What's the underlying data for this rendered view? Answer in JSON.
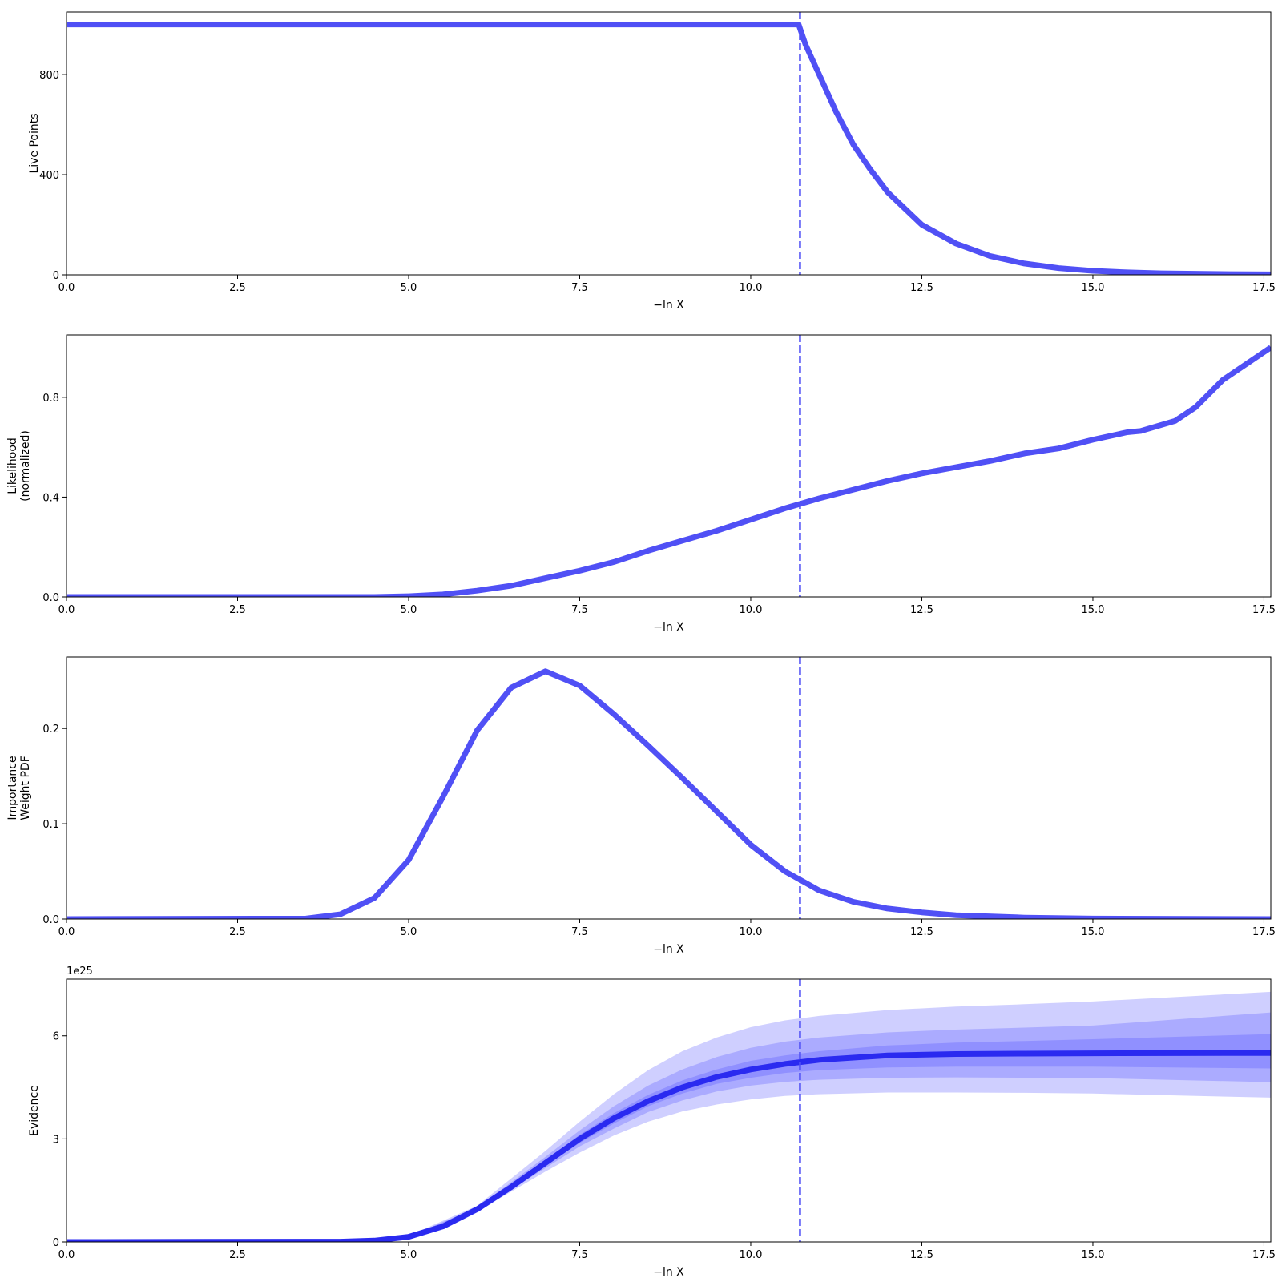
{
  "chart_data": [
    {
      "type": "line",
      "xlabel": "−ln X",
      "ylabel": [
        "Live Points"
      ],
      "xlim": [
        0,
        17.6
      ],
      "ylim": [
        0,
        1050
      ],
      "xticks": [
        0,
        2.5,
        5,
        7.5,
        10,
        12.5,
        15,
        17.5
      ],
      "xtick_labels": [
        "0.0",
        "2.5",
        "5.0",
        "7.5",
        "10.0",
        "12.5",
        "15.0",
        "17.5"
      ],
      "yticks": [
        0,
        400,
        800
      ],
      "ytick_labels": [
        "0",
        "400",
        "800"
      ],
      "vline_x": 10.72,
      "series": [
        {
          "x": [
            0,
            10.7,
            10.8,
            11.0,
            11.25,
            11.5,
            11.75,
            12.0,
            12.5,
            13.0,
            13.5,
            14.0,
            14.5,
            15.0,
            15.5,
            16.0,
            17.0,
            17.6
          ],
          "y": [
            1000,
            1000,
            920,
            800,
            650,
            520,
            420,
            330,
            200,
            125,
            75,
            45,
            27,
            16,
            10,
            6,
            3,
            2
          ]
        }
      ],
      "bands": []
    },
    {
      "type": "line",
      "xlabel": "−ln X",
      "ylabel": [
        "Likelihood",
        "(normalized)"
      ],
      "xlim": [
        0,
        17.6
      ],
      "ylim": [
        0,
        1.05
      ],
      "xticks": [
        0,
        2.5,
        5,
        7.5,
        10,
        12.5,
        15,
        17.5
      ],
      "xtick_labels": [
        "0.0",
        "2.5",
        "5.0",
        "7.5",
        "10.0",
        "12.5",
        "15.0",
        "17.5"
      ],
      "yticks": [
        0,
        0.4,
        0.8
      ],
      "ytick_labels": [
        "0.0",
        "0.4",
        "0.8"
      ],
      "vline_x": 10.72,
      "series": [
        {
          "x": [
            0,
            4.5,
            5.0,
            5.5,
            6.0,
            6.5,
            7.0,
            7.5,
            8.0,
            8.5,
            9.0,
            9.5,
            10.0,
            10.5,
            11.0,
            11.5,
            12.0,
            12.5,
            13.0,
            13.5,
            14.0,
            14.5,
            15.0,
            15.5,
            15.7,
            16.2,
            16.5,
            16.9,
            17.6
          ],
          "y": [
            0,
            0,
            0.003,
            0.01,
            0.025,
            0.045,
            0.075,
            0.105,
            0.14,
            0.185,
            0.225,
            0.265,
            0.31,
            0.355,
            0.395,
            0.43,
            0.465,
            0.495,
            0.52,
            0.545,
            0.575,
            0.595,
            0.63,
            0.66,
            0.665,
            0.705,
            0.76,
            0.87,
            1.0
          ]
        }
      ],
      "bands": []
    },
    {
      "type": "line",
      "xlabel": "−ln X",
      "ylabel": [
        "Importance",
        "Weight PDF"
      ],
      "xlim": [
        0,
        17.6
      ],
      "ylim": [
        0,
        0.275
      ],
      "xticks": [
        0,
        2.5,
        5,
        7.5,
        10,
        12.5,
        15,
        17.5
      ],
      "xtick_labels": [
        "0.0",
        "2.5",
        "5.0",
        "7.5",
        "10.0",
        "12.5",
        "15.0",
        "17.5"
      ],
      "yticks": [
        0,
        0.1,
        0.2
      ],
      "ytick_labels": [
        "0.0",
        "0.1",
        "0.2"
      ],
      "vline_x": 10.72,
      "series": [
        {
          "x": [
            0,
            3.5,
            4.0,
            4.5,
            5.0,
            5.5,
            6.0,
            6.5,
            7.0,
            7.5,
            8.0,
            8.5,
            9.0,
            9.5,
            10.0,
            10.5,
            11.0,
            11.5,
            12.0,
            12.5,
            13.0,
            14.0,
            15.0,
            17.6
          ],
          "y": [
            0,
            0.0005,
            0.005,
            0.022,
            0.062,
            0.128,
            0.198,
            0.243,
            0.26,
            0.245,
            0.215,
            0.182,
            0.148,
            0.113,
            0.078,
            0.05,
            0.03,
            0.018,
            0.011,
            0.007,
            0.004,
            0.0015,
            0.0005,
            0
          ]
        }
      ],
      "bands": []
    },
    {
      "type": "line",
      "xlabel": "−ln X",
      "ylabel": [
        "Evidence"
      ],
      "offset_label": "1e25",
      "xlim": [
        0,
        17.6
      ],
      "ylim": [
        0,
        7.65
      ],
      "xticks": [
        0,
        2.5,
        5,
        7.5,
        10,
        12.5,
        15,
        17.5
      ],
      "xtick_labels": [
        "0.0",
        "2.5",
        "5.0",
        "7.5",
        "10.0",
        "12.5",
        "15.0",
        "17.5"
      ],
      "yticks": [
        0,
        3,
        6
      ],
      "ytick_labels": [
        "0",
        "3",
        "6"
      ],
      "vline_x": 10.72,
      "series": [
        {
          "x": [
            0,
            4.0,
            4.5,
            5.0,
            5.5,
            6.0,
            6.5,
            7.0,
            7.5,
            8.0,
            8.5,
            9.0,
            9.5,
            10.0,
            10.5,
            11.0,
            12.0,
            13.0,
            14.0,
            15.0,
            17.6
          ],
          "y": [
            0,
            0.01,
            0.04,
            0.15,
            0.45,
            0.95,
            1.6,
            2.3,
            3.0,
            3.6,
            4.1,
            4.5,
            4.8,
            5.02,
            5.18,
            5.3,
            5.43,
            5.47,
            5.48,
            5.49,
            5.5
          ]
        }
      ],
      "bands": [
        {
          "x": [
            0,
            4.0,
            5.0,
            6.0,
            7.0,
            7.5,
            8.0,
            8.5,
            9.0,
            9.5,
            10.0,
            10.5,
            11.0,
            12.0,
            13.0,
            14.0,
            15.0,
            17.6
          ],
          "lower": [
            0,
            0.01,
            0.13,
            0.88,
            2.05,
            2.6,
            3.1,
            3.5,
            3.8,
            4.0,
            4.15,
            4.25,
            4.3,
            4.35,
            4.35,
            4.34,
            4.32,
            4.2
          ],
          "upper": [
            0,
            0.01,
            0.18,
            1.05,
            2.65,
            3.5,
            4.3,
            5.0,
            5.55,
            5.95,
            6.25,
            6.45,
            6.58,
            6.75,
            6.85,
            6.92,
            7.0,
            7.28
          ]
        },
        {
          "x": [
            0,
            4.0,
            5.0,
            6.0,
            7.0,
            7.5,
            8.0,
            8.5,
            9.0,
            9.5,
            10.0,
            10.5,
            11.0,
            12.0,
            13.0,
            14.0,
            15.0,
            17.6
          ],
          "lower": [
            0,
            0.01,
            0.14,
            0.91,
            2.15,
            2.78,
            3.3,
            3.78,
            4.12,
            4.38,
            4.55,
            4.66,
            4.72,
            4.78,
            4.79,
            4.78,
            4.77,
            4.65
          ],
          "upper": [
            0,
            0.01,
            0.16,
            1.0,
            2.48,
            3.25,
            3.95,
            4.55,
            5.02,
            5.38,
            5.65,
            5.83,
            5.95,
            6.1,
            6.18,
            6.24,
            6.3,
            6.68
          ]
        },
        {
          "x": [
            0,
            4.0,
            5.0,
            6.0,
            7.0,
            7.5,
            8.0,
            8.5,
            9.0,
            9.5,
            10.0,
            10.5,
            11.0,
            12.0,
            13.0,
            14.0,
            15.0,
            17.6
          ],
          "lower": [
            0,
            0.01,
            0.145,
            0.93,
            2.22,
            2.88,
            3.45,
            3.95,
            4.32,
            4.6,
            4.78,
            4.92,
            5.0,
            5.08,
            5.1,
            5.1,
            5.1,
            5.05
          ],
          "upper": [
            0,
            0.01,
            0.155,
            0.97,
            2.38,
            3.12,
            3.75,
            4.28,
            4.7,
            5.02,
            5.27,
            5.43,
            5.55,
            5.72,
            5.8,
            5.85,
            5.9,
            6.05
          ]
        }
      ]
    }
  ],
  "colors": {
    "line": "#5050f5",
    "line_dark": "#2a2af0",
    "band": "#4040ff"
  }
}
